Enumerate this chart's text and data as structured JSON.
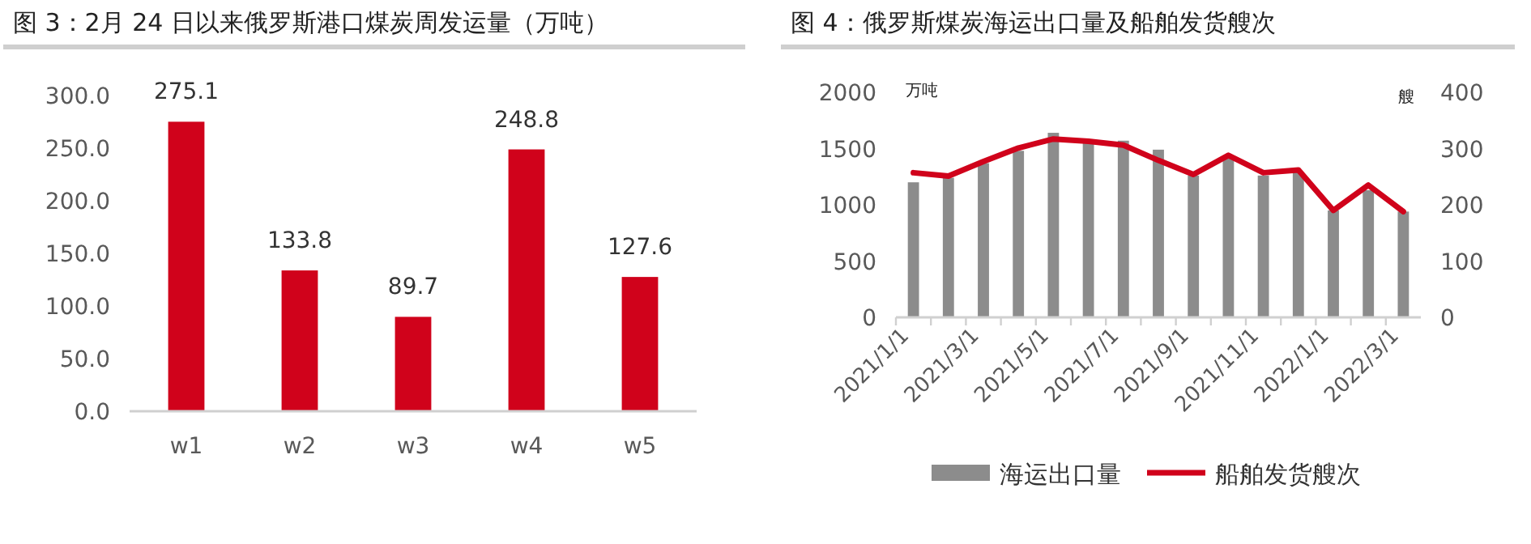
{
  "chart_data": [
    {
      "type": "bar",
      "title": "图 3：2月 24 日以来俄罗斯港口煤炭周发运量（万吨）",
      "categories": [
        "w1",
        "w2",
        "w3",
        "w4",
        "w5"
      ],
      "values": [
        275.1,
        133.8,
        89.7,
        248.8,
        127.6
      ],
      "color": "#d0021b",
      "ylim": [
        0,
        300
      ],
      "yticks": [
        {
          "value": 0,
          "label": "0.0"
        },
        {
          "value": 50,
          "label": "50.0"
        },
        {
          "value": 100,
          "label": "100.0"
        },
        {
          "value": 150,
          "label": "150.0"
        },
        {
          "value": 200,
          "label": "200.0"
        },
        {
          "value": 250,
          "label": "250.0"
        },
        {
          "value": 300,
          "label": "300.0"
        }
      ],
      "data_labels": true
    },
    {
      "type": "bar",
      "title": "图 4：俄罗斯煤炭海运出口量及船舶发货艘次",
      "ylabel": "万吨",
      "y2label": "艘",
      "categories": [
        "2021/1/1",
        null,
        "2021/3/1",
        null,
        "2021/5/1",
        null,
        "2021/7/1",
        null,
        "2021/9/1",
        null,
        "2021/11/1",
        null,
        "2022/1/1",
        null,
        "2022/3/1"
      ],
      "series": [
        {
          "name": "海运出口量",
          "type": "bar",
          "color": "#8c8c8c",
          "values": [
            1200,
            1240,
            1370,
            1480,
            1640,
            1560,
            1570,
            1490,
            1260,
            1410,
            1260,
            1290,
            950,
            1130,
            940
          ]
        },
        {
          "name": "船舶发货艘次",
          "type": "line",
          "axis": "y2",
          "color": "#d0021b",
          "values": [
            257,
            251,
            277,
            301,
            317,
            313,
            306,
            279,
            254,
            288,
            257,
            262,
            190,
            235,
            188
          ]
        }
      ],
      "ylim": [
        0,
        2000
      ],
      "yticks": [
        0,
        500,
        1000,
        1500,
        2000
      ],
      "y2lim": [
        0,
        400
      ],
      "y2ticks": [
        0,
        100,
        200,
        300,
        400
      ],
      "legend": "bottom"
    }
  ]
}
